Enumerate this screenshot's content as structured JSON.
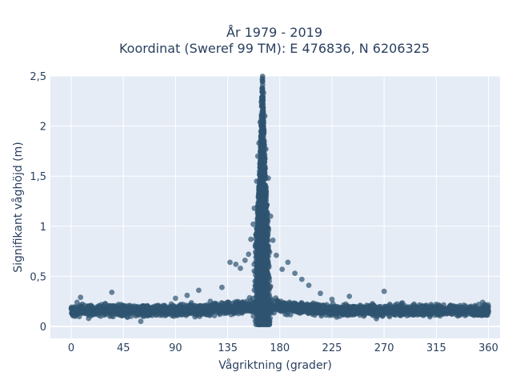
{
  "chart_data": {
    "type": "scatter",
    "title_line1": "År 1979 - 2019",
    "title_line2": "Koordinat (Sweref 99 TM): E 476836, N 6206325",
    "xlabel": "Vågriktning (grader)",
    "ylabel": "Signifikant våghöjd (m)",
    "xlim": [
      -18,
      370
    ],
    "ylim": [
      -0.12,
      2.5
    ],
    "xticks": [
      0,
      45,
      90,
      135,
      180,
      225,
      270,
      315,
      360
    ],
    "xtick_labels": [
      "0",
      "45",
      "90",
      "135",
      "180",
      "225",
      "270",
      "315",
      "360"
    ],
    "yticks": [
      0,
      0.5,
      1,
      1.5,
      2,
      2.5
    ],
    "ytick_labels": [
      "0",
      "0,5",
      "1",
      "1,5",
      "2",
      "2,5"
    ],
    "grid": true,
    "plot_bgcolor": "#e5ecf6",
    "marker_color": "#2f5470",
    "series": [
      {
        "points": [
          {
            "x": 0,
            "y": 0.18
          },
          {
            "x": 5,
            "y": 0.24
          },
          {
            "x": 8,
            "y": 0.29
          },
          {
            "x": 15,
            "y": 0.08
          },
          {
            "x": 30,
            "y": 0.12
          },
          {
            "x": 35,
            "y": 0.34
          },
          {
            "x": 45,
            "y": 0.17
          },
          {
            "x": 60,
            "y": 0.05
          },
          {
            "x": 75,
            "y": 0.21
          },
          {
            "x": 90,
            "y": 0.28
          },
          {
            "x": 100,
            "y": 0.31
          },
          {
            "x": 110,
            "y": 0.36
          },
          {
            "x": 120,
            "y": 0.25
          },
          {
            "x": 130,
            "y": 0.39
          },
          {
            "x": 137,
            "y": 0.64
          },
          {
            "x": 142,
            "y": 0.62
          },
          {
            "x": 146,
            "y": 0.58
          },
          {
            "x": 150,
            "y": 0.66
          },
          {
            "x": 153,
            "y": 0.72
          },
          {
            "x": 155,
            "y": 0.87
          },
          {
            "x": 157,
            "y": 1.02
          },
          {
            "x": 158,
            "y": 1.18
          },
          {
            "x": 160,
            "y": 1.45
          },
          {
            "x": 161,
            "y": 1.7
          },
          {
            "x": 162,
            "y": 1.83
          },
          {
            "x": 163,
            "y": 2.04
          },
          {
            "x": 164,
            "y": 2.24
          },
          {
            "x": 165,
            "y": 2.38
          },
          {
            "x": 166,
            "y": 2.33
          },
          {
            "x": 167,
            "y": 2.1
          },
          {
            "x": 168,
            "y": 1.77
          },
          {
            "x": 170,
            "y": 1.48
          },
          {
            "x": 172,
            "y": 1.1
          },
          {
            "x": 174,
            "y": 0.86
          },
          {
            "x": 177,
            "y": 0.71
          },
          {
            "x": 182,
            "y": 0.57
          },
          {
            "x": 187,
            "y": 0.64
          },
          {
            "x": 193,
            "y": 0.53
          },
          {
            "x": 199,
            "y": 0.47
          },
          {
            "x": 205,
            "y": 0.41
          },
          {
            "x": 215,
            "y": 0.33
          },
          {
            "x": 225,
            "y": 0.27
          },
          {
            "x": 240,
            "y": 0.3
          },
          {
            "x": 255,
            "y": 0.21
          },
          {
            "x": 270,
            "y": 0.35
          },
          {
            "x": 285,
            "y": 0.23
          },
          {
            "x": 300,
            "y": 0.19
          },
          {
            "x": 315,
            "y": 0.22
          },
          {
            "x": 330,
            "y": 0.16
          },
          {
            "x": 345,
            "y": 0.2
          },
          {
            "x": 355,
            "y": 0.24
          },
          {
            "x": 360,
            "y": 0.15
          }
        ]
      }
    ]
  }
}
